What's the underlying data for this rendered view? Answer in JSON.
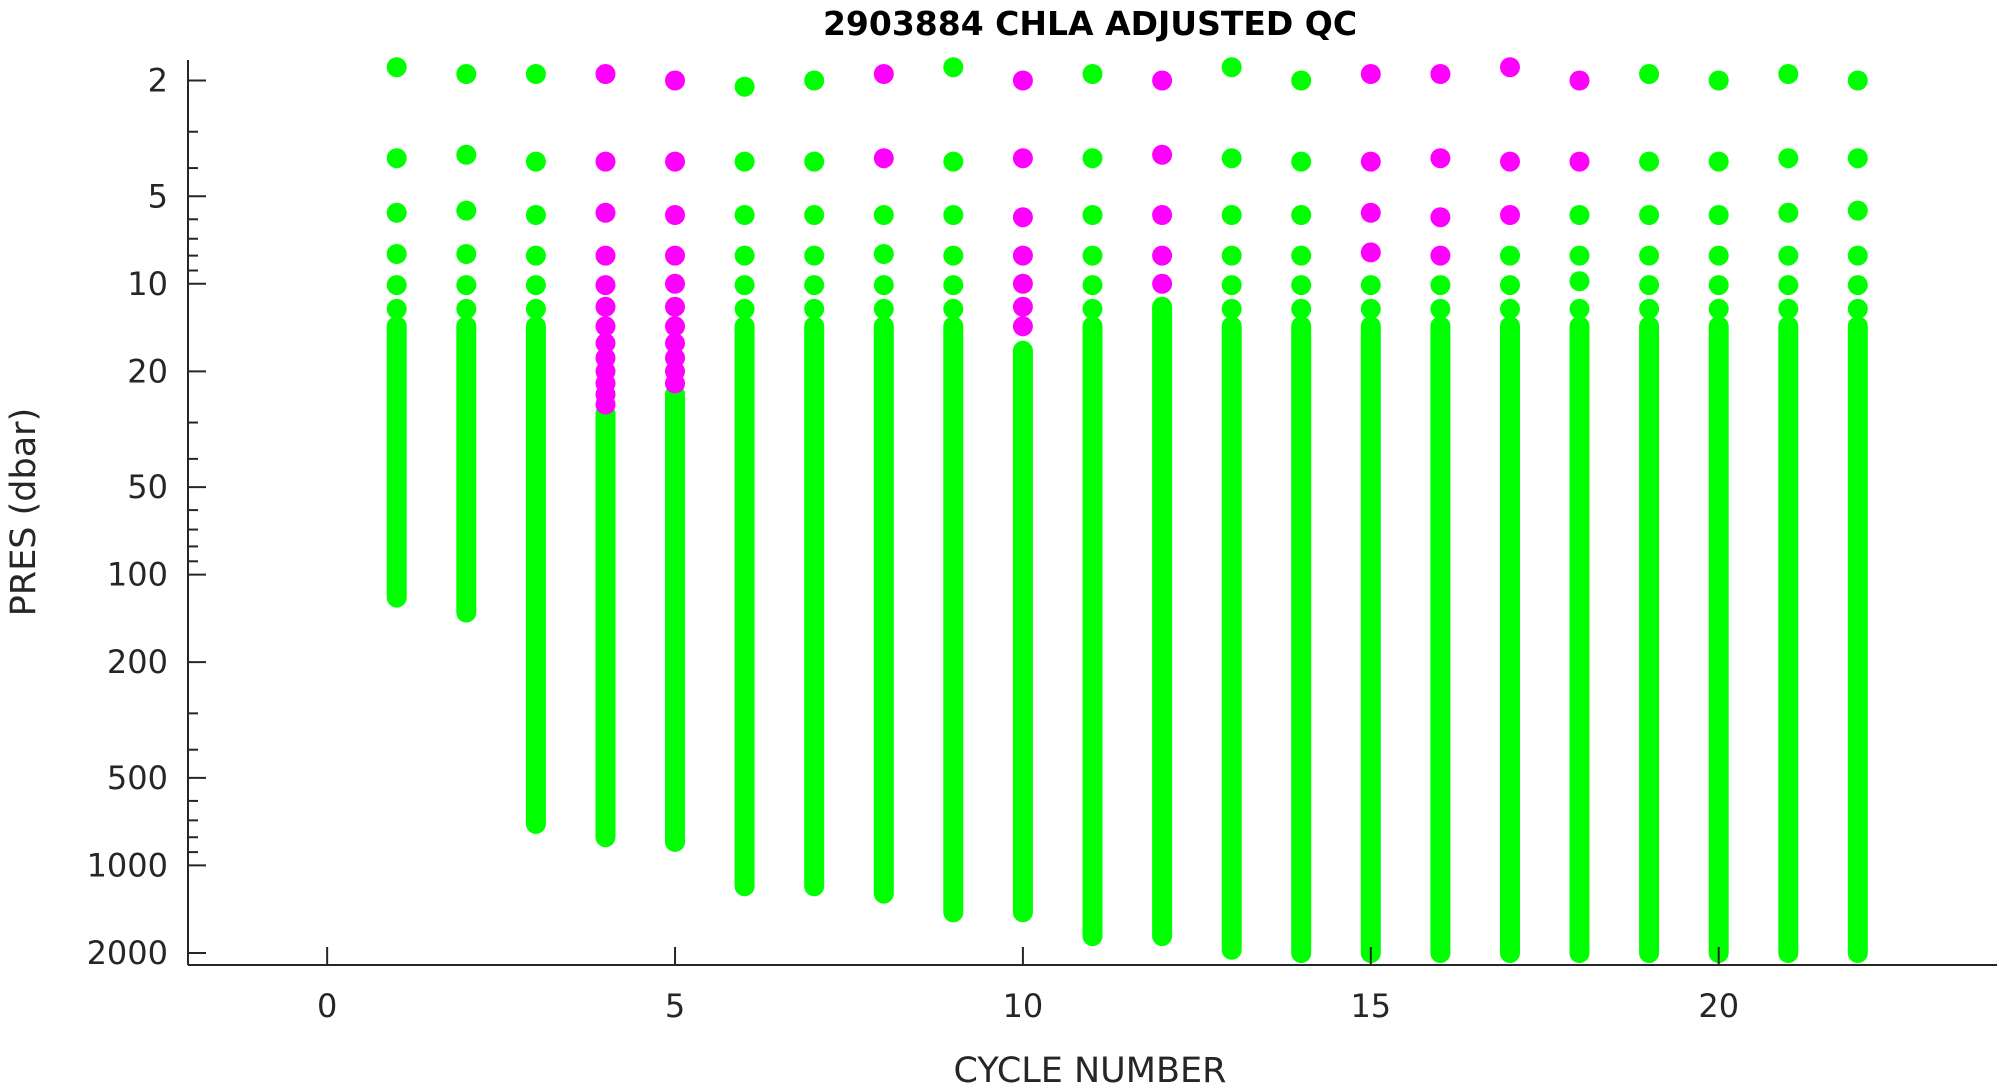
{
  "chart_data": {
    "type": "scatter",
    "title": "2903884  CHLA ADJUSTED QC",
    "xlabel": "CYCLE NUMBER",
    "ylabel": "PRES (dbar)",
    "xlim": [
      -2,
      24
    ],
    "ylim": [
      1.7,
      2200
    ],
    "y_scale": "log",
    "y_reversed": true,
    "x_ticks": [
      0,
      5,
      10,
      15,
      20
    ],
    "y_ticks": [
      2,
      5,
      10,
      20,
      50,
      100,
      200,
      500,
      1000,
      2000
    ],
    "y_tick_labels": [
      "2",
      "5",
      "10",
      "20",
      "50",
      "100",
      "200",
      "500",
      "1000",
      "2000"
    ],
    "grid": false,
    "legend": "none",
    "colors": {
      "qc_good": "#00ff00",
      "qc_flagged": "#ff00ff",
      "axis": "#262626"
    },
    "series": [
      {
        "color": "#00ff00",
        "columns": [
          {
            "cycle": 1,
            "surface": [
              1.8,
              3.7,
              5.7,
              7.9,
              10.1,
              12.2
            ],
            "min_pres": 14,
            "max_pres": 120
          },
          {
            "cycle": 2,
            "surface": [
              1.9,
              3.6,
              5.6,
              7.9,
              10.1,
              12.2
            ],
            "min_pres": 14,
            "max_pres": 135
          },
          {
            "cycle": 3,
            "surface": [
              1.9,
              3.8,
              5.8,
              8.0,
              10.1,
              12.2
            ],
            "min_pres": 14,
            "max_pres": 720
          },
          {
            "cycle": 4,
            "surface": [],
            "min_pres": 28,
            "max_pres": 800
          },
          {
            "cycle": 5,
            "surface": [],
            "min_pres": 24,
            "max_pres": 830
          },
          {
            "cycle": 6,
            "surface": [
              2.1,
              3.8,
              5.8,
              8.0,
              10.1,
              12.2
            ],
            "min_pres": 14,
            "max_pres": 1180
          },
          {
            "cycle": 7,
            "surface": [
              2.0,
              3.8,
              5.8,
              8.0,
              10.1,
              12.2
            ],
            "min_pres": 14,
            "max_pres": 1180
          },
          {
            "cycle": 8,
            "surface": [
              5.8,
              7.9,
              10.1,
              12.2
            ],
            "min_pres": 14,
            "max_pres": 1250
          },
          {
            "cycle": 9,
            "surface": [
              1.8,
              3.8,
              5.8,
              8.0,
              10.1,
              12.2
            ],
            "min_pres": 14,
            "max_pres": 1450
          },
          {
            "cycle": 10,
            "surface": [],
            "min_pres": 17,
            "max_pres": 1450
          },
          {
            "cycle": 11,
            "surface": [
              1.9,
              3.7,
              5.8,
              8.0,
              10.1,
              12.2
            ],
            "min_pres": 14,
            "max_pres": 1750
          },
          {
            "cycle": 12,
            "surface": [],
            "min_pres": 12,
            "max_pres": 1750
          },
          {
            "cycle": 13,
            "surface": [
              1.8,
              3.7,
              5.8,
              8.0,
              10.1,
              12.2
            ],
            "min_pres": 14,
            "max_pres": 1950
          },
          {
            "cycle": 14,
            "surface": [
              2.0,
              3.8,
              5.8,
              8.0,
              10.1,
              12.2
            ],
            "min_pres": 14,
            "max_pres": 2000
          },
          {
            "cycle": 15,
            "surface": [
              10.1,
              12.2
            ],
            "min_pres": 14,
            "max_pres": 2000
          },
          {
            "cycle": 16,
            "surface": [
              10.1,
              12.2
            ],
            "min_pres": 14,
            "max_pres": 2000
          },
          {
            "cycle": 17,
            "surface": [
              8.0,
              10.1,
              12.2
            ],
            "min_pres": 14,
            "max_pres": 2000
          },
          {
            "cycle": 18,
            "surface": [
              5.8,
              8.0,
              9.8,
              12.2
            ],
            "min_pres": 14,
            "max_pres": 2000
          },
          {
            "cycle": 19,
            "surface": [
              1.9,
              3.8,
              5.8,
              8.0,
              10.1,
              12.2
            ],
            "min_pres": 14,
            "max_pres": 2000
          },
          {
            "cycle": 20,
            "surface": [
              2.0,
              3.8,
              5.8,
              8.0,
              10.1,
              12.2
            ],
            "min_pres": 14,
            "max_pres": 2000
          },
          {
            "cycle": 21,
            "surface": [
              1.9,
              3.7,
              5.7,
              8.0,
              10.1,
              12.2
            ],
            "min_pres": 14,
            "max_pres": 2000
          },
          {
            "cycle": 22,
            "surface": [
              2.0,
              3.7,
              5.6,
              8.0,
              10.1,
              12.2
            ],
            "min_pres": 14,
            "max_pres": 2000
          }
        ]
      },
      {
        "color": "#ff00ff",
        "columns": [
          {
            "cycle": 4,
            "surface": [
              1.9,
              3.8,
              5.7,
              8.0,
              10.1,
              12.0,
              14.0,
              16.0,
              18.0,
              20.0,
              22.0,
              24.0,
              26.0
            ],
            "min_pres": null,
            "max_pres": null
          },
          {
            "cycle": 5,
            "surface": [
              2.0,
              3.8,
              5.8,
              8.0,
              10.0,
              12.0,
              14.0,
              16.0,
              18.0,
              20.0,
              22.0
            ],
            "min_pres": null,
            "max_pres": null
          },
          {
            "cycle": 8,
            "surface": [
              1.9,
              3.7
            ],
            "min_pres": null,
            "max_pres": null
          },
          {
            "cycle": 10,
            "surface": [
              2.0,
              3.7,
              5.9,
              8.0,
              10.0,
              12.0,
              14.0
            ],
            "min_pres": null,
            "max_pres": null
          },
          {
            "cycle": 12,
            "surface": [
              2.0,
              3.6,
              5.8,
              8.0,
              10.0
            ],
            "min_pres": null,
            "max_pres": null
          },
          {
            "cycle": 15,
            "surface": [
              1.9,
              3.8,
              5.7,
              7.8
            ],
            "min_pres": null,
            "max_pres": null
          },
          {
            "cycle": 16,
            "surface": [
              1.9,
              3.7,
              5.9,
              8.0
            ],
            "min_pres": null,
            "max_pres": null
          },
          {
            "cycle": 17,
            "surface": [
              1.8,
              3.8,
              5.8
            ],
            "min_pres": null,
            "max_pres": null
          },
          {
            "cycle": 18,
            "surface": [
              2.0,
              3.8
            ],
            "min_pres": null,
            "max_pres": null
          }
        ]
      }
    ]
  }
}
